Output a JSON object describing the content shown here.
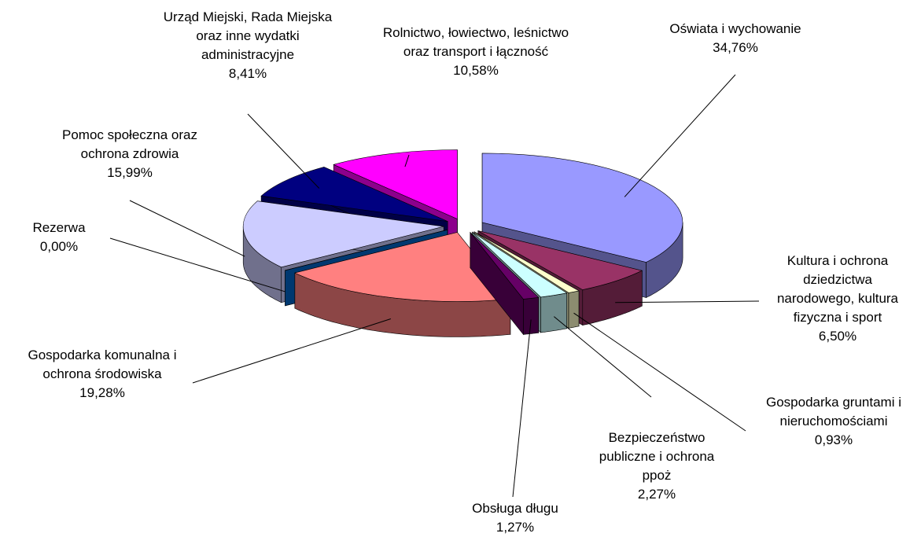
{
  "chart_data": {
    "type": "pie",
    "categories": [
      "Oświata i wychowanie",
      "Kultura i ochrona dziedzictwa narodowego, kultura fizyczna i sport",
      "Gospodarka gruntami i nieruchomościami",
      "Bezpieczeństwo publiczne i ochrona ppoż",
      "Obsługa długu",
      "Gospodarka komunalna i ochrona środowiska",
      "Rezerwa",
      "Pomoc społeczna oraz ochrona zdrowia",
      "Urząd Miejski, Rada Miejska oraz inne wydatki administracyjne",
      "Rolnictwo, łowiectwo, leśnictwo oraz transport i łączność"
    ],
    "values": [
      34.76,
      6.5,
      0.93,
      2.27,
      1.27,
      19.28,
      0.0,
      15.99,
      8.41,
      10.58
    ],
    "value_labels": [
      "34,76%",
      "6,50%",
      "0,93%",
      "2,27%",
      "1,27%",
      "19,28%",
      "0,00%",
      "15,99%",
      "8,41%",
      "10,58%"
    ],
    "colors": [
      "#9999ff",
      "#993366",
      "#ffffcc",
      "#ccffff",
      "#660066",
      "#ff8080",
      "#0066cc",
      "#ccccff",
      "#000080",
      "#ff00ff"
    ]
  }
}
